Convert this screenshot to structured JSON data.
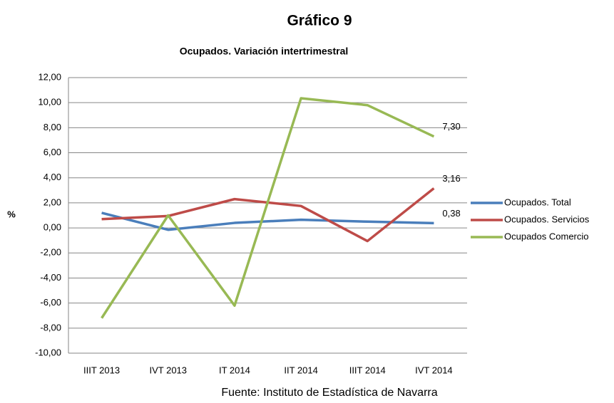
{
  "chart_data": {
    "type": "line",
    "title": "Gráfico 9",
    "subtitle": "Ocupados. Variación intertrimestral",
    "y_label": "%",
    "source": "Fuente: Instituto de Estadística de Navarra",
    "categories": [
      "IIIT 2013",
      "IVT 2013",
      "IT 2014",
      "IIT 2014",
      "IIIT 2014",
      "IVT 2014"
    ],
    "series": [
      {
        "name": "Ocupados. Total",
        "color": "#4a7ebb",
        "values": [
          1.2,
          -0.15,
          0.4,
          0.65,
          0.5,
          0.38
        ],
        "value_labels": [
          null,
          null,
          null,
          null,
          null,
          "0,38"
        ]
      },
      {
        "name": "Ocupados. Servicios",
        "color": "#be4b48",
        "values": [
          0.7,
          0.95,
          2.3,
          1.75,
          -1.05,
          3.16
        ],
        "value_labels": [
          null,
          null,
          null,
          null,
          null,
          "3,16"
        ]
      },
      {
        "name": "Ocupados Comercio",
        "color": "#98b954",
        "values": [
          -7.2,
          1.0,
          -6.2,
          10.35,
          9.8,
          7.3
        ],
        "value_labels": [
          null,
          null,
          null,
          null,
          null,
          "7,30"
        ]
      }
    ],
    "ylim": [
      -10,
      12
    ],
    "yticks": [
      {
        "value": -10,
        "label": "-10,00"
      },
      {
        "value": -8,
        "label": "-8,00"
      },
      {
        "value": -6,
        "label": "-6,00"
      },
      {
        "value": -4,
        "label": "-4,00"
      },
      {
        "value": -2,
        "label": "-2,00"
      },
      {
        "value": 0,
        "label": "0,00"
      },
      {
        "value": 2,
        "label": "2,00"
      },
      {
        "value": 4,
        "label": "4,00"
      },
      {
        "value": 6,
        "label": "6,00"
      },
      {
        "value": 8,
        "label": "8,00"
      },
      {
        "value": 10,
        "label": "10,00"
      },
      {
        "value": 12,
        "label": "12,00"
      }
    ],
    "grid": true,
    "legend": "right"
  }
}
